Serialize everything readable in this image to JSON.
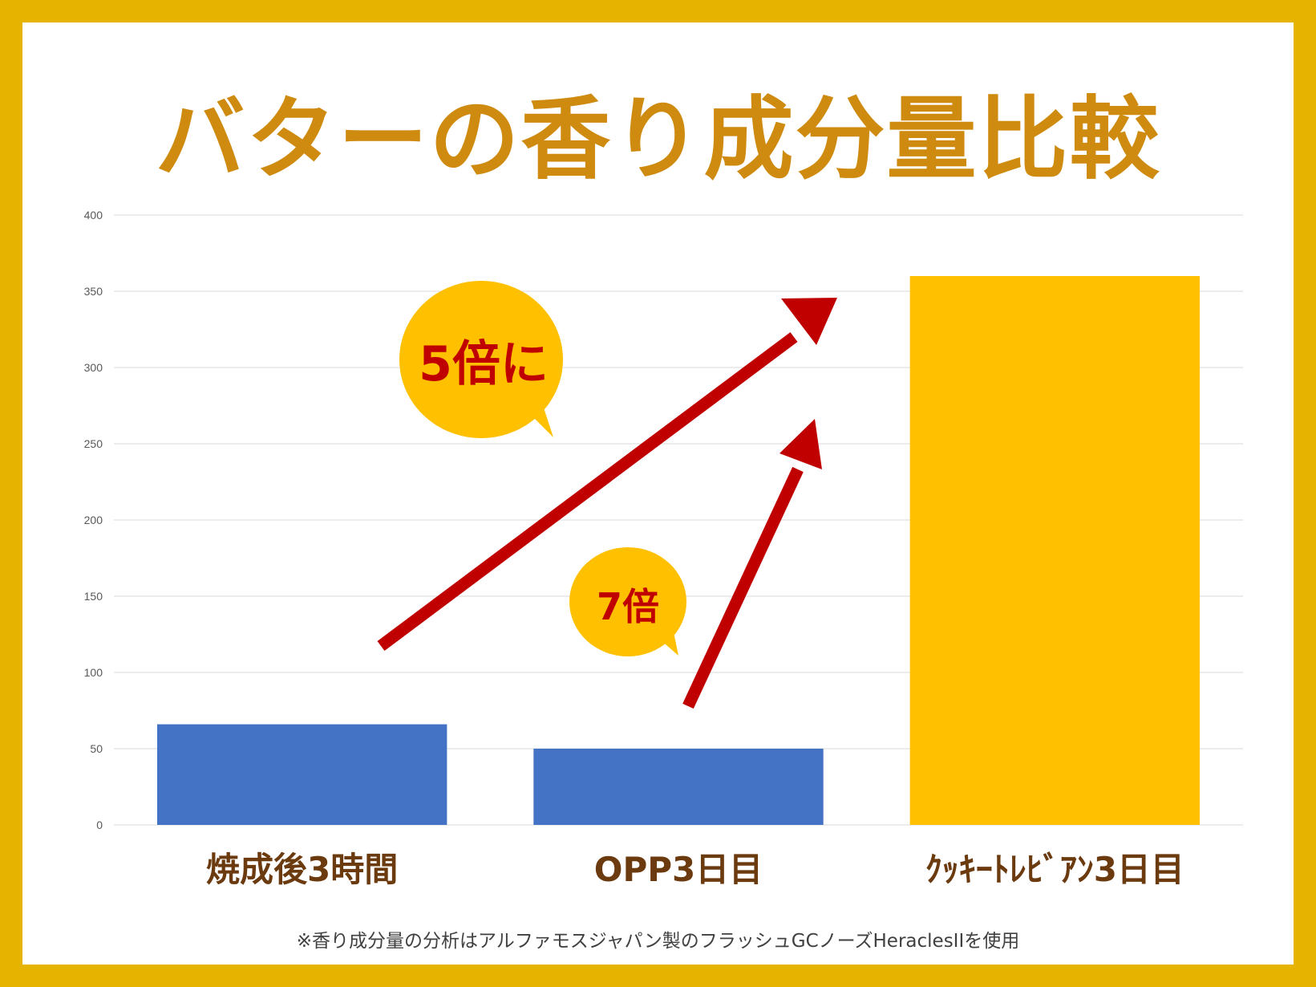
{
  "title": "バターの香り成分量比較",
  "footnote": "※香り成分量の分析はアルファモスジャパン製のフラッシュGCノーズHeraclesIIを使用",
  "colors": {
    "frame": "#e6b300",
    "title": "#cf8a10",
    "bar_blue": "#4472c4",
    "bar_gold": "#ffc000",
    "arrow": "#c00000",
    "bubble": "#ffc000",
    "category_text": "#6b3a0e"
  },
  "annotations": {
    "bubble_1": "5倍に",
    "bubble_2": "7倍"
  },
  "chart_data": {
    "type": "bar",
    "categories": [
      "焼成後3時間",
      "OPP3日目",
      "ｸｯｷｰﾄﾚﾋﾞｱﾝ3日目"
    ],
    "values": [
      66,
      50,
      360
    ],
    "bar_colors": [
      "#4472c4",
      "#4472c4",
      "#ffc000"
    ],
    "y_ticks": [
      0,
      50,
      100,
      150,
      200,
      250,
      300,
      350,
      400
    ],
    "ylim": [
      0,
      400
    ],
    "grid": true,
    "legend": "none",
    "xlabel": "",
    "ylabel": ""
  }
}
